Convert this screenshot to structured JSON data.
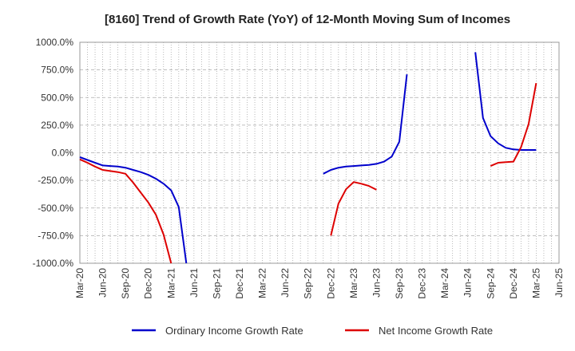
{
  "chart_data": {
    "type": "line",
    "title": "[8160]  Trend of Growth Rate (YoY) of 12-Month Moving Sum of Incomes",
    "xlabel": "",
    "ylabel": "",
    "ylim": [
      -1000,
      1000
    ],
    "yticks": [
      "1000.0%",
      "750.0%",
      "500.0%",
      "250.0%",
      "0.0%",
      "-250.0%",
      "-500.0%",
      "-750.0%",
      "-1000.0%"
    ],
    "x_labels": [
      "Mar-20",
      "Jun-20",
      "Sep-20",
      "Dec-20",
      "Mar-21",
      "Jun-21",
      "Sep-21",
      "Dec-21",
      "Mar-22",
      "Jun-22",
      "Sep-22",
      "Dec-22",
      "Mar-23",
      "Jun-23",
      "Sep-23",
      "Dec-23",
      "Mar-24",
      "Jun-24",
      "Sep-24",
      "Dec-24",
      "Mar-25",
      "Jun-25"
    ],
    "grid": true,
    "legend_position": "bottom",
    "series": [
      {
        "name": "Ordinary Income Growth Rate",
        "color": "#0000cc",
        "points": [
          [
            "2020-03",
            -40
          ],
          [
            "2020-04",
            -65
          ],
          [
            "2020-05",
            -90
          ],
          [
            "2020-06",
            -115
          ],
          [
            "2020-07",
            -120
          ],
          [
            "2020-08",
            -125
          ],
          [
            "2020-09",
            -135
          ],
          [
            "2020-10",
            -155
          ],
          [
            "2020-11",
            -175
          ],
          [
            "2020-12",
            -200
          ],
          [
            "2021-01",
            -235
          ],
          [
            "2021-02",
            -280
          ],
          [
            "2021-03",
            -340
          ],
          [
            "2021-04",
            -490
          ],
          [
            "2021-05",
            -1000
          ],
          null,
          [
            "2022-11",
            -190
          ],
          [
            "2022-12",
            -155
          ],
          [
            "2023-01",
            -135
          ],
          [
            "2023-02",
            -125
          ],
          [
            "2023-03",
            -120
          ],
          [
            "2023-04",
            -115
          ],
          [
            "2023-05",
            -110
          ],
          [
            "2023-06",
            -100
          ],
          [
            "2023-07",
            -80
          ],
          [
            "2023-08",
            -35
          ],
          [
            "2023-09",
            100
          ],
          [
            "2023-10",
            710
          ],
          null,
          [
            "2024-07",
            910
          ],
          [
            "2024-08",
            315
          ],
          [
            "2024-09",
            150
          ],
          [
            "2024-10",
            85
          ],
          [
            "2024-11",
            45
          ],
          [
            "2024-12",
            30
          ],
          [
            "2025-01",
            25
          ],
          [
            "2025-02",
            25
          ],
          [
            "2025-03",
            25
          ]
        ]
      },
      {
        "name": "Net Income Growth Rate",
        "color": "#dd0000",
        "points": [
          [
            "2020-03",
            -60
          ],
          [
            "2020-04",
            -90
          ],
          [
            "2020-05",
            -125
          ],
          [
            "2020-06",
            -155
          ],
          [
            "2020-07",
            -165
          ],
          [
            "2020-08",
            -175
          ],
          [
            "2020-09",
            -190
          ],
          [
            "2020-10",
            -270
          ],
          [
            "2020-11",
            -360
          ],
          [
            "2020-12",
            -450
          ],
          [
            "2021-01",
            -560
          ],
          [
            "2021-02",
            -740
          ],
          [
            "2021-03",
            -1000
          ],
          null,
          [
            "2022-12",
            -750
          ],
          [
            "2023-01",
            -460
          ],
          [
            "2023-02",
            -330
          ],
          [
            "2023-03",
            -265
          ],
          [
            "2023-04",
            -280
          ],
          [
            "2023-05",
            -300
          ],
          [
            "2023-06",
            -335
          ],
          null,
          [
            "2024-09",
            -120
          ],
          [
            "2024-10",
            -90
          ],
          [
            "2024-11",
            -85
          ],
          [
            "2024-12",
            -80
          ],
          [
            "2025-01",
            50
          ],
          [
            "2025-02",
            260
          ],
          [
            "2025-03",
            630
          ]
        ]
      }
    ]
  }
}
